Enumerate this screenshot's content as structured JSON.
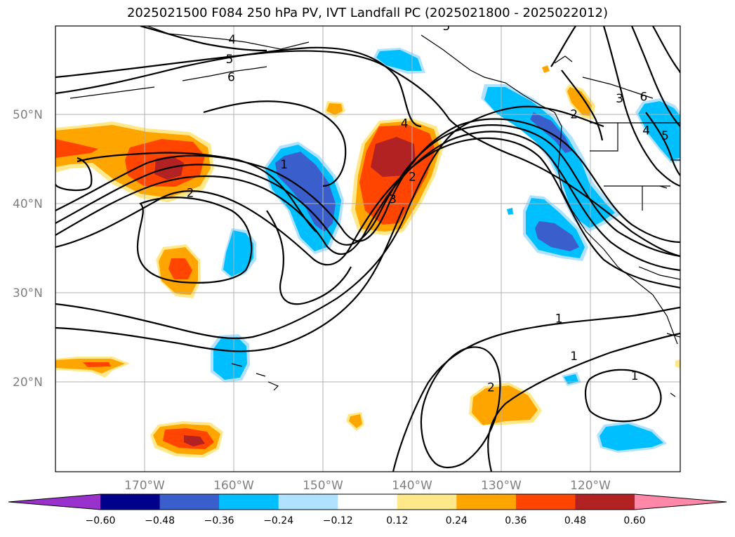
{
  "title": "2025021500 F084 250 hPa PV, IVT Landfall PC (2025021800 - 2025022012)",
  "map": {
    "extent_lon": [
      -180,
      -110
    ],
    "extent_lat": [
      10,
      60
    ],
    "lat_ticks": [
      {
        "value": 50,
        "label": "50°N"
      },
      {
        "value": 40,
        "label": "40°N"
      },
      {
        "value": 30,
        "label": "30°N"
      },
      {
        "value": 20,
        "label": "20°N"
      }
    ],
    "lon_ticks": [
      {
        "value": -170,
        "label": "170°W"
      },
      {
        "value": -160,
        "label": "160°W"
      },
      {
        "value": -150,
        "label": "150°W"
      },
      {
        "value": -140,
        "label": "140°W"
      },
      {
        "value": -130,
        "label": "130°W"
      },
      {
        "value": -120,
        "label": "120°W"
      }
    ],
    "grid": true
  },
  "colorbar": {
    "colors": [
      "#9932cc",
      "#00008b",
      "#3a5fcd",
      "#00bfff",
      "#b0e2ff",
      "#ffffff",
      "#ffe88a",
      "#ffa500",
      "#ff4500",
      "#b22222",
      "#ff88a8"
    ],
    "tick_labels": [
      "−0.60",
      "−0.48",
      "−0.36",
      "−0.24",
      "−0.12",
      "0.12",
      "0.24",
      "0.36",
      "0.48",
      "0.60"
    ],
    "extend": "both"
  },
  "contour_labels": [
    {
      "text": "4",
      "lon": -160.2,
      "lat": 58.5
    },
    {
      "text": "5",
      "lon": -160.5,
      "lat": 56.3
    },
    {
      "text": "6",
      "lon": -160.3,
      "lat": 54.3
    },
    {
      "text": "2",
      "lon": -164.9,
      "lat": 41.3
    },
    {
      "text": "1",
      "lon": -154.4,
      "lat": 44.5
    },
    {
      "text": "4",
      "lon": -140.9,
      "lat": 49.1
    },
    {
      "text": "3",
      "lon": -142.2,
      "lat": 40.6
    },
    {
      "text": "2",
      "lon": -140.0,
      "lat": 43.1
    },
    {
      "text": "5",
      "lon": -136.2,
      "lat": 60.0
    },
    {
      "text": "2",
      "lon": -121.9,
      "lat": 50.1
    },
    {
      "text": "3",
      "lon": -116.8,
      "lat": 51.9
    },
    {
      "text": "6",
      "lon": -114.1,
      "lat": 52.1
    },
    {
      "text": "4",
      "lon": -113.8,
      "lat": 48.3
    },
    {
      "text": "5",
      "lon": -111.7,
      "lat": 47.7
    },
    {
      "text": "1",
      "lon": -123.6,
      "lat": 27.2
    },
    {
      "text": "1",
      "lon": -121.9,
      "lat": 23.0
    },
    {
      "text": "1",
      "lon": -115.1,
      "lat": 20.8
    },
    {
      "text": "2",
      "lon": -131.2,
      "lat": 19.5
    }
  ]
}
